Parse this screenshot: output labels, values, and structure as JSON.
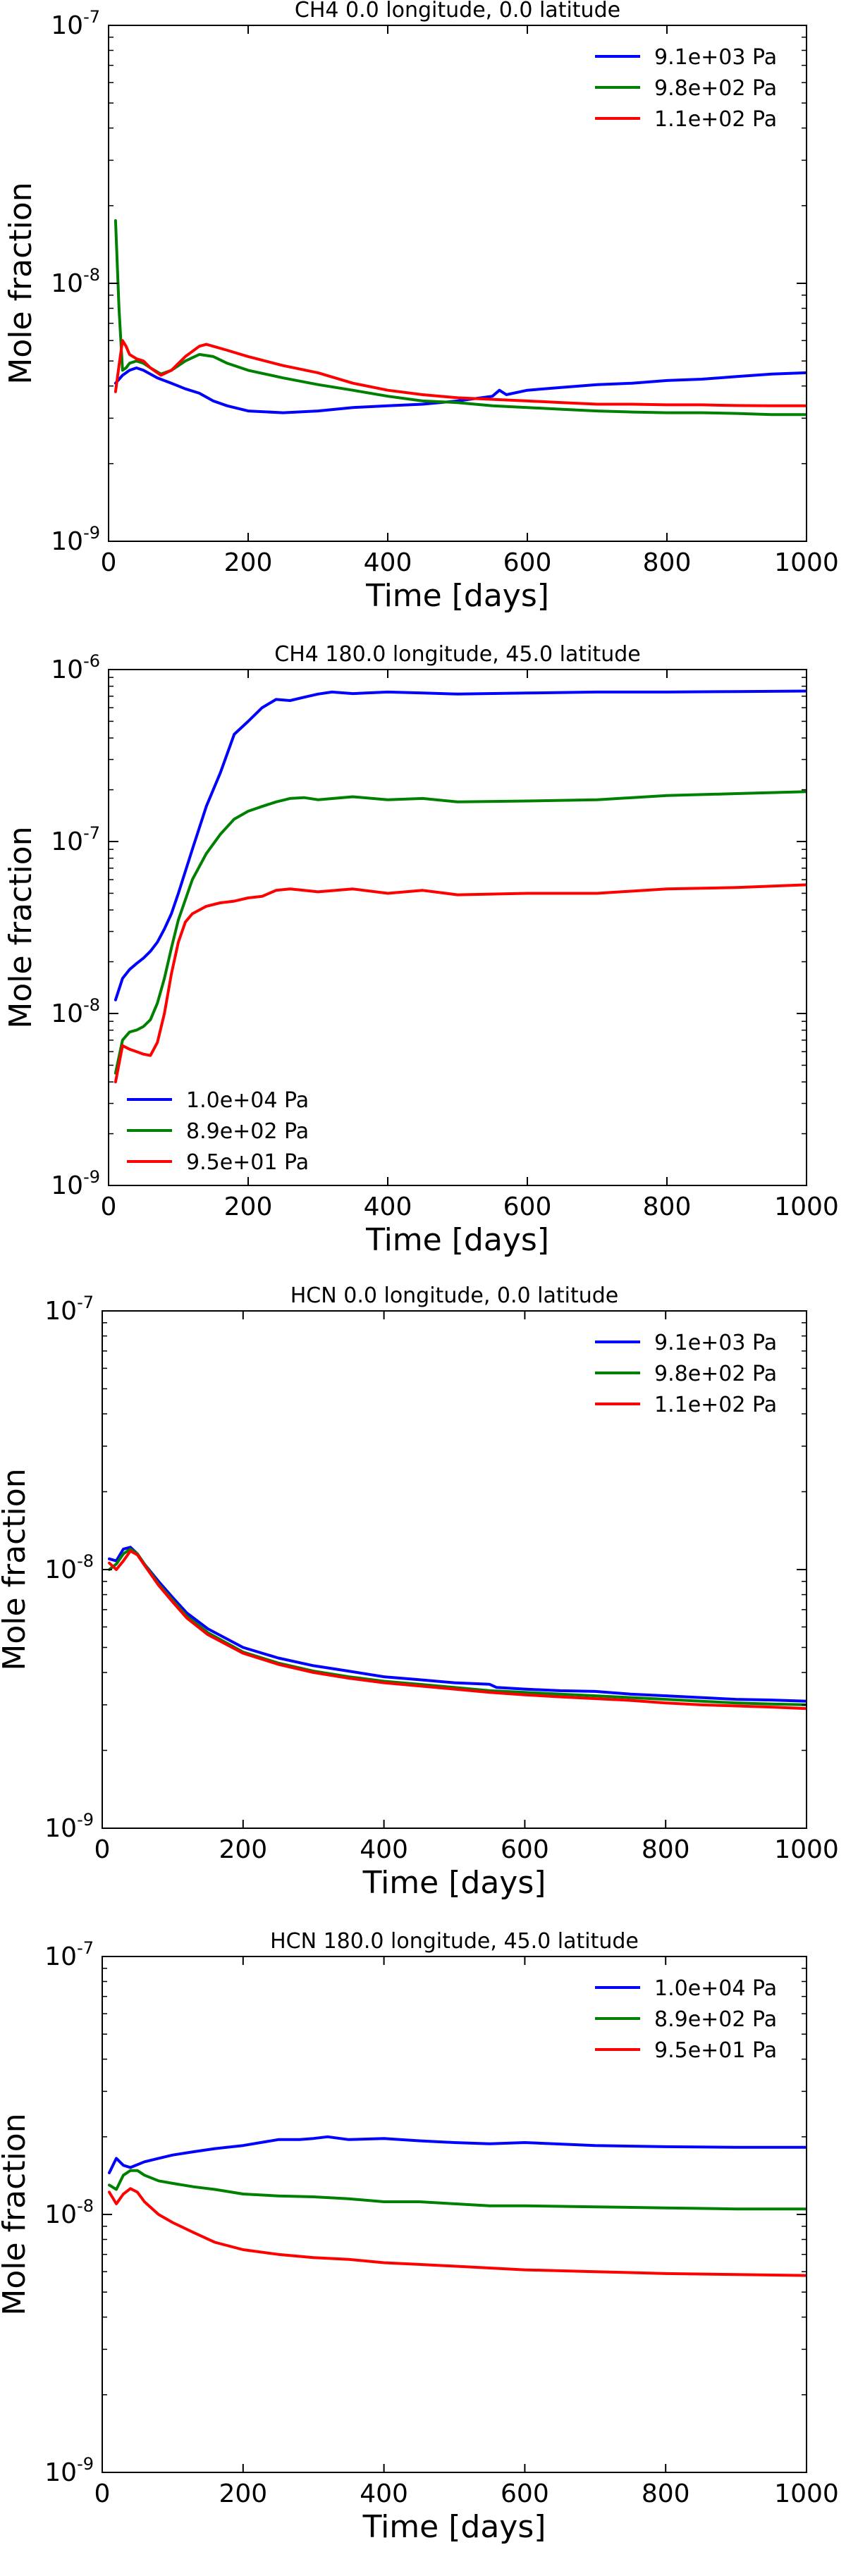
{
  "chart_data": [
    {
      "type": "line",
      "title": "CH4 0.0 longitude, 0.0 latitude",
      "xlabel": "Time [days]",
      "ylabel": "Mole fraction",
      "xlim": [
        0,
        1000
      ],
      "ylim": [
        1e-09,
        1e-07
      ],
      "yscale": "log",
      "xticks": [
        "0",
        "200",
        "400",
        "600",
        "800",
        "1000"
      ],
      "yticks": [
        {
          "base": "10",
          "exp": "-9"
        },
        {
          "base": "10",
          "exp": "-8"
        },
        {
          "base": "10",
          "exp": "-7"
        }
      ],
      "legend_position": "top-right",
      "series": [
        {
          "name": "9.1e+03 Pa",
          "color": "#0000ff",
          "x": [
            10,
            20,
            30,
            40,
            50,
            70,
            90,
            110,
            130,
            150,
            170,
            200,
            250,
            300,
            350,
            400,
            450,
            500,
            550,
            560,
            570,
            600,
            650,
            700,
            750,
            800,
            850,
            900,
            950,
            1000
          ],
          "y": [
            4.1e-09,
            4.4e-09,
            4.6e-09,
            4.7e-09,
            4.6e-09,
            4.3e-09,
            4.1e-09,
            3.9e-09,
            3.75e-09,
            3.5e-09,
            3.35e-09,
            3.2e-09,
            3.15e-09,
            3.2e-09,
            3.3e-09,
            3.35e-09,
            3.4e-09,
            3.5e-09,
            3.65e-09,
            3.85e-09,
            3.7e-09,
            3.85e-09,
            3.95e-09,
            4.05e-09,
            4.1e-09,
            4.2e-09,
            4.25e-09,
            4.35e-09,
            4.45e-09,
            4.5e-09
          ]
        },
        {
          "name": "9.8e+02 Pa",
          "color": "#008000",
          "x": [
            10,
            15,
            20,
            25,
            30,
            40,
            50,
            60,
            75,
            90,
            110,
            130,
            150,
            170,
            200,
            250,
            300,
            350,
            400,
            450,
            500,
            550,
            600,
            650,
            700,
            750,
            800,
            850,
            900,
            950,
            1000
          ],
          "y": [
            1.75e-08,
            8e-09,
            4.6e-09,
            4.7e-09,
            4.9e-09,
            5e-09,
            4.9e-09,
            4.7e-09,
            4.45e-09,
            4.6e-09,
            5e-09,
            5.3e-09,
            5.2e-09,
            4.9e-09,
            4.6e-09,
            4.3e-09,
            4.05e-09,
            3.85e-09,
            3.65e-09,
            3.5e-09,
            3.45e-09,
            3.35e-09,
            3.3e-09,
            3.25e-09,
            3.2e-09,
            3.17e-09,
            3.15e-09,
            3.15e-09,
            3.13e-09,
            3.1e-09,
            3.1e-09
          ]
        },
        {
          "name": "1.1e+02 Pa",
          "color": "#ff0000",
          "x": [
            10,
            15,
            20,
            25,
            30,
            40,
            50,
            60,
            75,
            90,
            110,
            130,
            140,
            150,
            170,
            200,
            250,
            300,
            350,
            400,
            450,
            500,
            550,
            600,
            650,
            700,
            750,
            800,
            850,
            900,
            950,
            1000
          ],
          "y": [
            3.8e-09,
            4.8e-09,
            6e-09,
            5.7e-09,
            5.3e-09,
            5.1e-09,
            5e-09,
            4.7e-09,
            4.4e-09,
            4.6e-09,
            5.2e-09,
            5.7e-09,
            5.8e-09,
            5.7e-09,
            5.5e-09,
            5.2e-09,
            4.8e-09,
            4.5e-09,
            4.1e-09,
            3.85e-09,
            3.7e-09,
            3.6e-09,
            3.55e-09,
            3.5e-09,
            3.45e-09,
            3.4e-09,
            3.4e-09,
            3.38e-09,
            3.38e-09,
            3.36e-09,
            3.35e-09,
            3.35e-09
          ]
        }
      ]
    },
    {
      "type": "line",
      "title": "CH4 180.0 longitude, 45.0 latitude",
      "xlabel": "Time [days]",
      "ylabel": "Mole fraction",
      "xlim": [
        0,
        1000
      ],
      "ylim": [
        1e-09,
        1e-06
      ],
      "yscale": "log",
      "xticks": [
        "0",
        "200",
        "400",
        "600",
        "800",
        "1000"
      ],
      "yticks": [
        {
          "base": "10",
          "exp": "-9"
        },
        {
          "base": "10",
          "exp": "-8"
        },
        {
          "base": "10",
          "exp": "-7"
        },
        {
          "base": "10",
          "exp": "-6"
        }
      ],
      "legend_position": "bottom-left",
      "series": [
        {
          "name": "1.0e+04 Pa",
          "color": "#0000ff",
          "x": [
            10,
            20,
            30,
            40,
            50,
            60,
            70,
            80,
            90,
            100,
            120,
            140,
            160,
            180,
            200,
            220,
            240,
            260,
            280,
            300,
            320,
            350,
            400,
            450,
            500,
            600,
            700,
            800,
            900,
            1000
          ],
          "y": [
            1.2e-08,
            1.6e-08,
            1.8e-08,
            1.95e-08,
            2.1e-08,
            2.3e-08,
            2.6e-08,
            3.1e-08,
            3.8e-08,
            5e-08,
            9e-08,
            1.6e-07,
            2.5e-07,
            4.2e-07,
            5e-07,
            6e-07,
            6.7e-07,
            6.6e-07,
            6.9e-07,
            7.2e-07,
            7.4e-07,
            7.25e-07,
            7.4e-07,
            7.3e-07,
            7.2e-07,
            7.3e-07,
            7.4e-07,
            7.4e-07,
            7.45e-07,
            7.5e-07
          ]
        },
        {
          "name": "8.9e+02 Pa",
          "color": "#008000",
          "x": [
            10,
            20,
            30,
            40,
            50,
            60,
            70,
            80,
            90,
            100,
            120,
            140,
            160,
            180,
            200,
            220,
            240,
            260,
            280,
            300,
            350,
            400,
            450,
            500,
            600,
            700,
            800,
            900,
            1000
          ],
          "y": [
            4.5e-09,
            7e-09,
            7.8e-09,
            8e-09,
            8.4e-09,
            9.2e-09,
            1.15e-08,
            1.6e-08,
            2.4e-08,
            3.5e-08,
            6e-08,
            8.5e-08,
            1.1e-07,
            1.35e-07,
            1.5e-07,
            1.6e-07,
            1.7e-07,
            1.78e-07,
            1.8e-07,
            1.75e-07,
            1.82e-07,
            1.75e-07,
            1.78e-07,
            1.7e-07,
            1.72e-07,
            1.75e-07,
            1.85e-07,
            1.9e-07,
            1.95e-07
          ]
        },
        {
          "name": "9.5e+01 Pa",
          "color": "#ff0000",
          "x": [
            10,
            20,
            30,
            40,
            50,
            60,
            70,
            80,
            90,
            100,
            110,
            120,
            140,
            160,
            180,
            200,
            220,
            240,
            260,
            280,
            300,
            350,
            400,
            450,
            500,
            600,
            700,
            800,
            900,
            1000
          ],
          "y": [
            4e-09,
            6.5e-09,
            6.2e-09,
            6e-09,
            5.8e-09,
            5.7e-09,
            6.8e-09,
            1e-08,
            1.7e-08,
            2.6e-08,
            3.4e-08,
            3.8e-08,
            4.2e-08,
            4.4e-08,
            4.5e-08,
            4.7e-08,
            4.8e-08,
            5.2e-08,
            5.3e-08,
            5.2e-08,
            5.1e-08,
            5.3e-08,
            5e-08,
            5.2e-08,
            4.9e-08,
            5e-08,
            5e-08,
            5.3e-08,
            5.4e-08,
            5.6e-08
          ]
        }
      ]
    },
    {
      "type": "line",
      "title": "HCN 0.0 longitude, 0.0 latitude",
      "xlabel": "Time [days]",
      "ylabel": "Mole fraction",
      "xlim": [
        0,
        1000
      ],
      "ylim": [
        1e-09,
        1e-07
      ],
      "yscale": "log",
      "xticks": [
        "0",
        "200",
        "400",
        "600",
        "800",
        "1000"
      ],
      "yticks": [
        {
          "base": "10",
          "exp": "-9"
        },
        {
          "base": "10",
          "exp": "-8"
        },
        {
          "base": "10",
          "exp": "-7"
        }
      ],
      "legend_position": "top-right",
      "series": [
        {
          "name": "9.1e+03 Pa",
          "color": "#0000ff",
          "x": [
            10,
            20,
            30,
            40,
            50,
            60,
            80,
            100,
            120,
            150,
            200,
            250,
            300,
            350,
            400,
            450,
            500,
            550,
            560,
            600,
            650,
            700,
            750,
            800,
            850,
            900,
            950,
            1000
          ],
          "y": [
            1.1e-08,
            1.08e-08,
            1.2e-08,
            1.22e-08,
            1.15e-08,
            1.05e-08,
            9e-09,
            7.8e-09,
            6.8e-09,
            5.9e-09,
            5e-09,
            4.55e-09,
            4.25e-09,
            4.05e-09,
            3.85e-09,
            3.75e-09,
            3.65e-09,
            3.6e-09,
            3.5e-09,
            3.45e-09,
            3.4e-09,
            3.38e-09,
            3.3e-09,
            3.25e-09,
            3.2e-09,
            3.15e-09,
            3.13e-09,
            3.1e-09
          ]
        },
        {
          "name": "9.8e+02 Pa",
          "color": "#008000",
          "x": [
            10,
            20,
            30,
            40,
            50,
            60,
            80,
            100,
            120,
            150,
            200,
            250,
            300,
            350,
            400,
            450,
            500,
            550,
            600,
            650,
            700,
            750,
            800,
            850,
            900,
            950,
            1000
          ],
          "y": [
            1e-08,
            1.05e-08,
            1.15e-08,
            1.2e-08,
            1.15e-08,
            1.05e-08,
            8.8e-09,
            7.6e-09,
            6.6e-09,
            5.7e-09,
            4.8e-09,
            4.35e-09,
            4.05e-09,
            3.85e-09,
            3.7e-09,
            3.6e-09,
            3.5e-09,
            3.4e-09,
            3.35e-09,
            3.3e-09,
            3.25e-09,
            3.2e-09,
            3.15e-09,
            3.1e-09,
            3.05e-09,
            3.02e-09,
            3e-09
          ]
        },
        {
          "name": "1.1e+02 Pa",
          "color": "#ff0000",
          "x": [
            10,
            20,
            30,
            40,
            50,
            60,
            80,
            100,
            120,
            150,
            200,
            250,
            300,
            350,
            400,
            450,
            500,
            550,
            600,
            650,
            700,
            750,
            800,
            850,
            900,
            950,
            1000
          ],
          "y": [
            1.06e-08,
            1e-08,
            1.08e-08,
            1.18e-08,
            1.14e-08,
            1.04e-08,
            8.7e-09,
            7.5e-09,
            6.5e-09,
            5.6e-09,
            4.75e-09,
            4.3e-09,
            4e-09,
            3.8e-09,
            3.65e-09,
            3.55e-09,
            3.45e-09,
            3.35e-09,
            3.28e-09,
            3.22e-09,
            3.17e-09,
            3.12e-09,
            3.05e-09,
            3e-09,
            2.97e-09,
            2.94e-09,
            2.9e-09
          ]
        }
      ]
    },
    {
      "type": "line",
      "title": "HCN 180.0 longitude, 45.0 latitude",
      "xlabel": "Time [days]",
      "ylabel": "Mole fraction",
      "xlim": [
        0,
        1000
      ],
      "ylim": [
        1e-09,
        1e-07
      ],
      "yscale": "log",
      "xticks": [
        "0",
        "200",
        "400",
        "600",
        "800",
        "1000"
      ],
      "yticks": [
        {
          "base": "10",
          "exp": "-9"
        },
        {
          "base": "10",
          "exp": "-8"
        },
        {
          "base": "10",
          "exp": "-7"
        }
      ],
      "legend_position": "top-right",
      "series": [
        {
          "name": "1.0e+04 Pa",
          "color": "#0000ff",
          "x": [
            10,
            20,
            30,
            40,
            60,
            80,
            100,
            130,
            160,
            200,
            250,
            280,
            300,
            320,
            350,
            400,
            450,
            500,
            550,
            600,
            700,
            800,
            900,
            1000
          ],
          "y": [
            1.45e-08,
            1.65e-08,
            1.55e-08,
            1.52e-08,
            1.6e-08,
            1.65e-08,
            1.7e-08,
            1.75e-08,
            1.8e-08,
            1.85e-08,
            1.95e-08,
            1.95e-08,
            1.97e-08,
            2e-08,
            1.95e-08,
            1.97e-08,
            1.93e-08,
            1.9e-08,
            1.88e-08,
            1.9e-08,
            1.85e-08,
            1.83e-08,
            1.82e-08,
            1.82e-08
          ]
        },
        {
          "name": "8.9e+02 Pa",
          "color": "#008000",
          "x": [
            10,
            20,
            30,
            40,
            50,
            60,
            80,
            100,
            130,
            160,
            200,
            250,
            300,
            350,
            400,
            450,
            500,
            550,
            600,
            700,
            800,
            900,
            1000
          ],
          "y": [
            1.3e-08,
            1.25e-08,
            1.42e-08,
            1.48e-08,
            1.48e-08,
            1.42e-08,
            1.35e-08,
            1.32e-08,
            1.28e-08,
            1.25e-08,
            1.2e-08,
            1.18e-08,
            1.17e-08,
            1.15e-08,
            1.12e-08,
            1.12e-08,
            1.1e-08,
            1.08e-08,
            1.08e-08,
            1.07e-08,
            1.06e-08,
            1.05e-08,
            1.05e-08
          ]
        },
        {
          "name": "9.5e+01 Pa",
          "color": "#ff0000",
          "x": [
            10,
            20,
            30,
            40,
            50,
            60,
            80,
            100,
            130,
            160,
            200,
            250,
            300,
            350,
            400,
            450,
            500,
            550,
            600,
            700,
            800,
            900,
            1000
          ],
          "y": [
            1.22e-08,
            1.1e-08,
            1.2e-08,
            1.26e-08,
            1.22e-08,
            1.12e-08,
            1e-08,
            9.3e-09,
            8.5e-09,
            7.8e-09,
            7.3e-09,
            7e-09,
            6.8e-09,
            6.7e-09,
            6.5e-09,
            6.4e-09,
            6.3e-09,
            6.2e-09,
            6.1e-09,
            6e-09,
            5.9e-09,
            5.85e-09,
            5.8e-09
          ]
        }
      ]
    }
  ]
}
